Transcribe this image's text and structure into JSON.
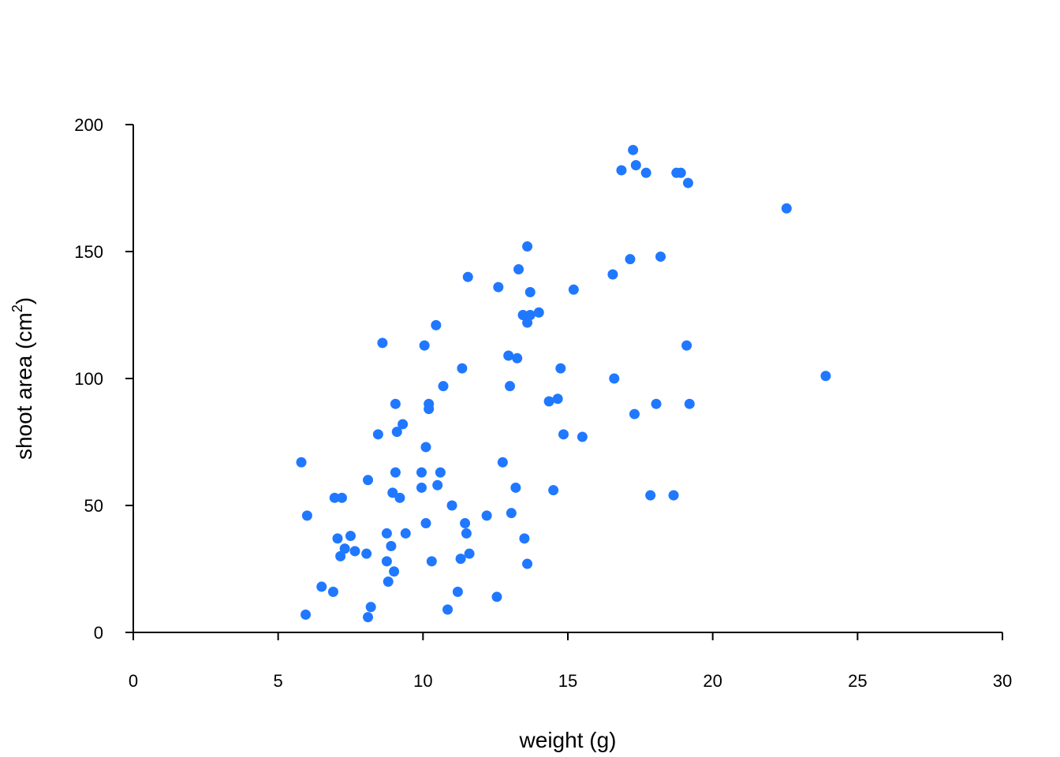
{
  "chart_data": {
    "type": "scatter",
    "xlabel": "weight (g)",
    "ylabel": {
      "text": "shoot area (cm",
      "superscript": "2",
      "suffix": ")"
    },
    "xlim": [
      0,
      30
    ],
    "ylim": [
      0,
      200
    ],
    "xticks": [
      0,
      5,
      10,
      15,
      20,
      25,
      30
    ],
    "yticks": [
      0,
      50,
      100,
      150,
      200
    ],
    "grid": false,
    "marker_color": "#1f78ff",
    "points": [
      {
        "x": 5.8,
        "y": 67
      },
      {
        "x": 5.95,
        "y": 7
      },
      {
        "x": 6.0,
        "y": 46
      },
      {
        "x": 6.5,
        "y": 18
      },
      {
        "x": 6.9,
        "y": 16
      },
      {
        "x": 6.95,
        "y": 53
      },
      {
        "x": 7.05,
        "y": 37
      },
      {
        "x": 7.15,
        "y": 30
      },
      {
        "x": 7.2,
        "y": 53
      },
      {
        "x": 7.3,
        "y": 33
      },
      {
        "x": 7.5,
        "y": 38
      },
      {
        "x": 7.65,
        "y": 32
      },
      {
        "x": 8.05,
        "y": 31
      },
      {
        "x": 8.1,
        "y": 6
      },
      {
        "x": 8.1,
        "y": 60
      },
      {
        "x": 8.2,
        "y": 10
      },
      {
        "x": 8.45,
        "y": 78
      },
      {
        "x": 8.6,
        "y": 114
      },
      {
        "x": 8.75,
        "y": 28
      },
      {
        "x": 8.75,
        "y": 39
      },
      {
        "x": 8.8,
        "y": 20
      },
      {
        "x": 8.9,
        "y": 34
      },
      {
        "x": 8.95,
        "y": 55
      },
      {
        "x": 9.0,
        "y": 24
      },
      {
        "x": 9.05,
        "y": 90
      },
      {
        "x": 9.05,
        "y": 63
      },
      {
        "x": 9.1,
        "y": 79
      },
      {
        "x": 9.2,
        "y": 53
      },
      {
        "x": 9.3,
        "y": 82
      },
      {
        "x": 9.4,
        "y": 39
      },
      {
        "x": 9.95,
        "y": 63
      },
      {
        "x": 9.95,
        "y": 57
      },
      {
        "x": 10.05,
        "y": 113
      },
      {
        "x": 10.1,
        "y": 73
      },
      {
        "x": 10.1,
        "y": 43
      },
      {
        "x": 10.2,
        "y": 90
      },
      {
        "x": 10.2,
        "y": 88
      },
      {
        "x": 10.3,
        "y": 28
      },
      {
        "x": 10.45,
        "y": 121
      },
      {
        "x": 10.5,
        "y": 58
      },
      {
        "x": 10.6,
        "y": 63
      },
      {
        "x": 10.7,
        "y": 97
      },
      {
        "x": 10.85,
        "y": 9
      },
      {
        "x": 11.0,
        "y": 50
      },
      {
        "x": 11.2,
        "y": 16
      },
      {
        "x": 11.3,
        "y": 29
      },
      {
        "x": 11.35,
        "y": 104
      },
      {
        "x": 11.45,
        "y": 43
      },
      {
        "x": 11.5,
        "y": 39
      },
      {
        "x": 11.55,
        "y": 140
      },
      {
        "x": 11.6,
        "y": 31
      },
      {
        "x": 12.2,
        "y": 46
      },
      {
        "x": 12.55,
        "y": 14
      },
      {
        "x": 12.6,
        "y": 136
      },
      {
        "x": 12.75,
        "y": 67
      },
      {
        "x": 12.95,
        "y": 109
      },
      {
        "x": 13.0,
        "y": 97
      },
      {
        "x": 13.05,
        "y": 47
      },
      {
        "x": 13.2,
        "y": 57
      },
      {
        "x": 13.25,
        "y": 108
      },
      {
        "x": 13.3,
        "y": 143
      },
      {
        "x": 13.45,
        "y": 125
      },
      {
        "x": 13.5,
        "y": 37
      },
      {
        "x": 13.6,
        "y": 27
      },
      {
        "x": 13.6,
        "y": 152
      },
      {
        "x": 13.6,
        "y": 122
      },
      {
        "x": 13.7,
        "y": 125
      },
      {
        "x": 13.7,
        "y": 134
      },
      {
        "x": 14.0,
        "y": 126
      },
      {
        "x": 14.35,
        "y": 91
      },
      {
        "x": 14.5,
        "y": 56
      },
      {
        "x": 14.65,
        "y": 92
      },
      {
        "x": 14.75,
        "y": 104
      },
      {
        "x": 14.85,
        "y": 78
      },
      {
        "x": 15.2,
        "y": 135
      },
      {
        "x": 15.5,
        "y": 77
      },
      {
        "x": 16.55,
        "y": 141
      },
      {
        "x": 16.6,
        "y": 100
      },
      {
        "x": 16.85,
        "y": 182
      },
      {
        "x": 17.15,
        "y": 147
      },
      {
        "x": 17.25,
        "y": 190
      },
      {
        "x": 17.3,
        "y": 86
      },
      {
        "x": 17.35,
        "y": 184
      },
      {
        "x": 17.7,
        "y": 181
      },
      {
        "x": 17.85,
        "y": 54
      },
      {
        "x": 18.05,
        "y": 90
      },
      {
        "x": 18.2,
        "y": 148
      },
      {
        "x": 18.65,
        "y": 54
      },
      {
        "x": 18.75,
        "y": 181
      },
      {
        "x": 18.9,
        "y": 181
      },
      {
        "x": 19.1,
        "y": 113
      },
      {
        "x": 19.15,
        "y": 177
      },
      {
        "x": 19.2,
        "y": 90
      },
      {
        "x": 22.55,
        "y": 167
      },
      {
        "x": 23.9,
        "y": 101
      }
    ]
  }
}
